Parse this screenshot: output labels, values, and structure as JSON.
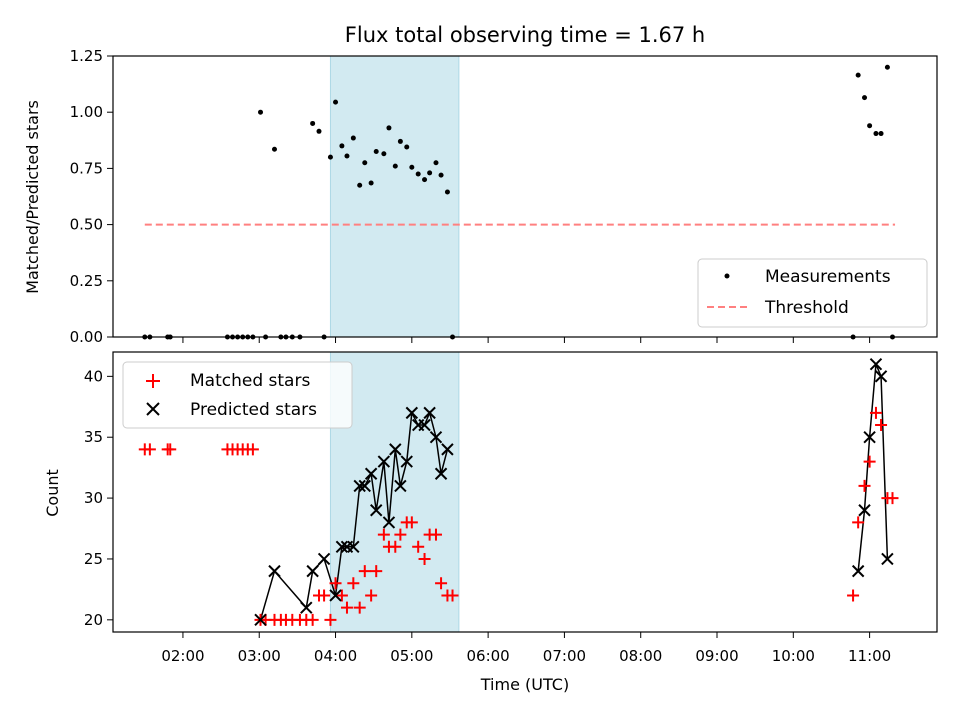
{
  "chart_data": {
    "title": "Flux total observing time = 1.67 h",
    "shaded_interval": [
      "03:56",
      "05:37"
    ],
    "shaded_color": "#add8e6",
    "xlabel": "Time (UTC)",
    "xlim": [
      "01:05",
      "11:53"
    ],
    "xticks": [
      "02:00",
      "03:00",
      "04:00",
      "05:00",
      "06:00",
      "07:00",
      "08:00",
      "09:00",
      "10:00",
      "11:00"
    ],
    "top": {
      "type": "scatter",
      "ylabel": "Matched/Predicted stars",
      "ylim": [
        0,
        1.25
      ],
      "yticks": [
        "0.00",
        "0.25",
        "0.50",
        "0.75",
        "1.00",
        "1.25"
      ],
      "threshold": {
        "value": 0.5,
        "range": [
          "01:30",
          "11:20"
        ],
        "color": "#ff8080"
      },
      "series": [
        {
          "name": "Measurements",
          "color": "#000000",
          "points": [
            [
              "01:30",
              0
            ],
            [
              "01:34",
              0
            ],
            [
              "01:48",
              0
            ],
            [
              "01:50",
              0
            ],
            [
              "02:35",
              0
            ],
            [
              "02:39",
              0
            ],
            [
              "02:43",
              0
            ],
            [
              "02:47",
              0
            ],
            [
              "02:51",
              0
            ],
            [
              "02:55",
              0
            ],
            [
              "03:01",
              1.0
            ],
            [
              "03:05",
              0
            ],
            [
              "03:12",
              0.835
            ],
            [
              "03:17",
              0
            ],
            [
              "03:21",
              0
            ],
            [
              "03:26",
              0
            ],
            [
              "03:32",
              0
            ],
            [
              "03:42",
              0.95
            ],
            [
              "03:47",
              0.915
            ],
            [
              "03:51",
              0
            ],
            [
              "03:56",
              0.8
            ],
            [
              "04:00",
              1.045
            ],
            [
              "04:05",
              0.85
            ],
            [
              "04:09",
              0.805
            ],
            [
              "04:14",
              0.885
            ],
            [
              "04:19",
              0.675
            ],
            [
              "04:23",
              0.775
            ],
            [
              "04:28",
              0.685
            ],
            [
              "04:32",
              0.825
            ],
            [
              "04:38",
              0.815
            ],
            [
              "04:42",
              0.93
            ],
            [
              "04:47",
              0.76
            ],
            [
              "04:51",
              0.87
            ],
            [
              "04:56",
              0.845
            ],
            [
              "05:00",
              0.755
            ],
            [
              "05:05",
              0.725
            ],
            [
              "05:10",
              0.7
            ],
            [
              "05:14",
              0.73
            ],
            [
              "05:19",
              0.775
            ],
            [
              "05:23",
              0.72
            ],
            [
              "05:28",
              0.645
            ],
            [
              "05:32",
              0
            ],
            [
              "10:47",
              0
            ],
            [
              "10:51",
              1.165
            ],
            [
              "10:56",
              1.065
            ],
            [
              "11:00",
              0.94
            ],
            [
              "11:05",
              0.905
            ],
            [
              "11:09",
              0.905
            ],
            [
              "11:14",
              1.2
            ],
            [
              "11:18",
              0
            ]
          ]
        },
        {
          "name": "Threshold",
          "color": "#ff8080"
        }
      ],
      "legend_position": "lower right"
    },
    "bottom": {
      "type": "scatter",
      "ylabel": "Count",
      "ylim": [
        19,
        42
      ],
      "yticks": [
        20,
        25,
        30,
        35,
        40
      ],
      "legend_position": "upper left",
      "series": [
        {
          "name": "Matched stars",
          "marker": "plus",
          "color": "#ff0000",
          "points": [
            [
              "01:30",
              34
            ],
            [
              "01:34",
              34
            ],
            [
              "01:48",
              34
            ],
            [
              "01:50",
              34
            ],
            [
              "02:35",
              34
            ],
            [
              "02:39",
              34
            ],
            [
              "02:43",
              34
            ],
            [
              "02:47",
              34
            ],
            [
              "02:51",
              34
            ],
            [
              "02:55",
              34
            ],
            [
              "03:01",
              20
            ],
            [
              "03:05",
              20
            ],
            [
              "03:12",
              20
            ],
            [
              "03:17",
              20
            ],
            [
              "03:21",
              20
            ],
            [
              "03:26",
              20
            ],
            [
              "03:32",
              20
            ],
            [
              "03:37",
              20
            ],
            [
              "03:42",
              20
            ],
            [
              "03:47",
              22
            ],
            [
              "03:51",
              22
            ],
            [
              "03:56",
              20
            ],
            [
              "04:00",
              23
            ],
            [
              "04:05",
              22
            ],
            [
              "04:09",
              21
            ],
            [
              "04:14",
              23
            ],
            [
              "04:19",
              21
            ],
            [
              "04:23",
              24
            ],
            [
              "04:28",
              22
            ],
            [
              "04:32",
              24
            ],
            [
              "04:38",
              27
            ],
            [
              "04:42",
              26
            ],
            [
              "04:47",
              26
            ],
            [
              "04:51",
              27
            ],
            [
              "04:56",
              28
            ],
            [
              "05:00",
              28
            ],
            [
              "05:05",
              26
            ],
            [
              "05:10",
              25
            ],
            [
              "05:14",
              27
            ],
            [
              "05:19",
              27
            ],
            [
              "05:23",
              23
            ],
            [
              "05:28",
              22
            ],
            [
              "05:32",
              22
            ],
            [
              "10:47",
              22
            ],
            [
              "10:51",
              28
            ],
            [
              "10:56",
              31
            ],
            [
              "11:00",
              33
            ],
            [
              "11:05",
              37
            ],
            [
              "11:09",
              36
            ],
            [
              "11:14",
              30
            ],
            [
              "11:18",
              30
            ]
          ]
        },
        {
          "name": "Predicted stars",
          "marker": "x",
          "color": "#000000",
          "points": [
            [
              "03:01",
              20
            ],
            [
              "03:12",
              24
            ],
            [
              "03:37",
              21
            ],
            [
              "03:42",
              24
            ],
            [
              "03:51",
              25
            ],
            [
              "04:00",
              22
            ],
            [
              "04:05",
              26
            ],
            [
              "04:09",
              26
            ],
            [
              "04:14",
              26
            ],
            [
              "04:19",
              31
            ],
            [
              "04:23",
              31
            ],
            [
              "04:28",
              32
            ],
            [
              "04:32",
              29
            ],
            [
              "04:38",
              33
            ],
            [
              "04:42",
              28
            ],
            [
              "04:47",
              34
            ],
            [
              "04:51",
              31
            ],
            [
              "04:56",
              33
            ],
            [
              "05:00",
              37
            ],
            [
              "05:05",
              36
            ],
            [
              "05:10",
              36
            ],
            [
              "05:14",
              37
            ],
            [
              "05:19",
              35
            ],
            [
              "05:23",
              32
            ],
            [
              "05:28",
              34
            ],
            [
              "10:51",
              24
            ],
            [
              "10:56",
              29
            ],
            [
              "11:00",
              35
            ],
            [
              "11:05",
              41
            ],
            [
              "11:09",
              40
            ],
            [
              "11:14",
              25
            ]
          ]
        }
      ]
    }
  }
}
